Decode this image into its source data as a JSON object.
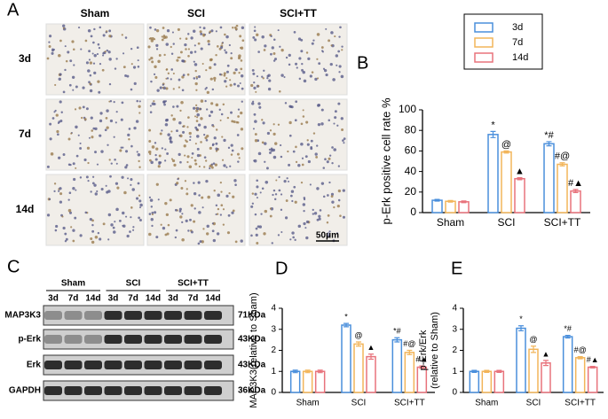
{
  "panel_labels": [
    "A",
    "B",
    "C",
    "D",
    "E"
  ],
  "micrographs": {
    "columns": [
      "Sham",
      "SCI",
      "SCI+TT"
    ],
    "rows": [
      "3d",
      "7d",
      "14d"
    ],
    "scale_bar": "50μm"
  },
  "blot": {
    "groups": [
      "Sham",
      "SCI",
      "SCI+TT"
    ],
    "lanes": [
      "3d",
      "7d",
      "14d",
      "3d",
      "7d",
      "14d",
      "3d",
      "7d",
      "14d"
    ],
    "proteins": [
      "MAP3K3",
      "p-Erk",
      "Erk",
      "GAPDH"
    ],
    "sizes": [
      "71KDa",
      "43KDa",
      "43KDa",
      "36KDa"
    ]
  },
  "chart_data": [
    {
      "type": "bar",
      "ylabel": "p-Erk positive cell rate %",
      "categories": [
        "Sham",
        "SCI",
        "SCI+TT"
      ],
      "ylim": [
        0,
        100
      ],
      "yticks": [
        0,
        20,
        40,
        60,
        80,
        100
      ],
      "legend": "top-right",
      "series": [
        {
          "name": "3d",
          "color": "#4a8fdc",
          "values": [
            12,
            76,
            67
          ],
          "errors": [
            0.8,
            3,
            2
          ],
          "annotations": [
            null,
            "*",
            "*#"
          ]
        },
        {
          "name": "7d",
          "color": "#f2b55a",
          "values": [
            11,
            59,
            47
          ],
          "errors": [
            0.8,
            1,
            1.5
          ],
          "annotations": [
            null,
            "@",
            "#@"
          ]
        },
        {
          "name": "14d",
          "color": "#e8737c",
          "values": [
            10.5,
            33,
            21
          ],
          "errors": [
            0.8,
            1,
            1.5
          ],
          "annotations": [
            null,
            "▲",
            "#▲"
          ]
        }
      ]
    },
    {
      "type": "bar",
      "ylabel": "MAP3K3(relative to Sham)",
      "categories": [
        "Sham",
        "SCI",
        "SCI+TT"
      ],
      "ylim": [
        0,
        4
      ],
      "yticks": [
        0,
        1,
        2,
        3,
        4
      ],
      "series": [
        {
          "color": "#4a8fdc",
          "values": [
            1,
            3.2,
            2.5
          ],
          "errors": [
            0.06,
            0.08,
            0.1
          ],
          "annotations": [
            null,
            "*",
            "*#"
          ]
        },
        {
          "color": "#f2b55a",
          "values": [
            1,
            2.3,
            1.9
          ],
          "errors": [
            0.06,
            0.1,
            0.1
          ],
          "annotations": [
            null,
            "@",
            "#@"
          ]
        },
        {
          "color": "#e8737c",
          "values": [
            1,
            1.7,
            1.2
          ],
          "errors": [
            0.06,
            0.12,
            0.06
          ],
          "annotations": [
            null,
            "▲",
            "#▲"
          ]
        }
      ]
    },
    {
      "type": "bar",
      "ylabel": [
        "p-Erk/Erk",
        "(relative to Sham)"
      ],
      "categories": [
        "Sham",
        "SCI",
        "SCI+TT"
      ],
      "ylim": [
        0,
        4
      ],
      "yticks": [
        0,
        1,
        2,
        3,
        4
      ],
      "series": [
        {
          "color": "#4a8fdc",
          "values": [
            1,
            3.05,
            2.65
          ],
          "errors": [
            0.05,
            0.12,
            0.06
          ],
          "annotations": [
            null,
            "*",
            "*#"
          ]
        },
        {
          "color": "#f2b55a",
          "values": [
            1,
            2.05,
            1.65
          ],
          "errors": [
            0.05,
            0.15,
            0.05
          ],
          "annotations": [
            null,
            "@",
            "#@"
          ]
        },
        {
          "color": "#e8737c",
          "values": [
            1,
            1.4,
            1.2
          ],
          "errors": [
            0.05,
            0.12,
            0.04
          ],
          "annotations": [
            null,
            "▲",
            "#▲"
          ]
        }
      ]
    }
  ]
}
